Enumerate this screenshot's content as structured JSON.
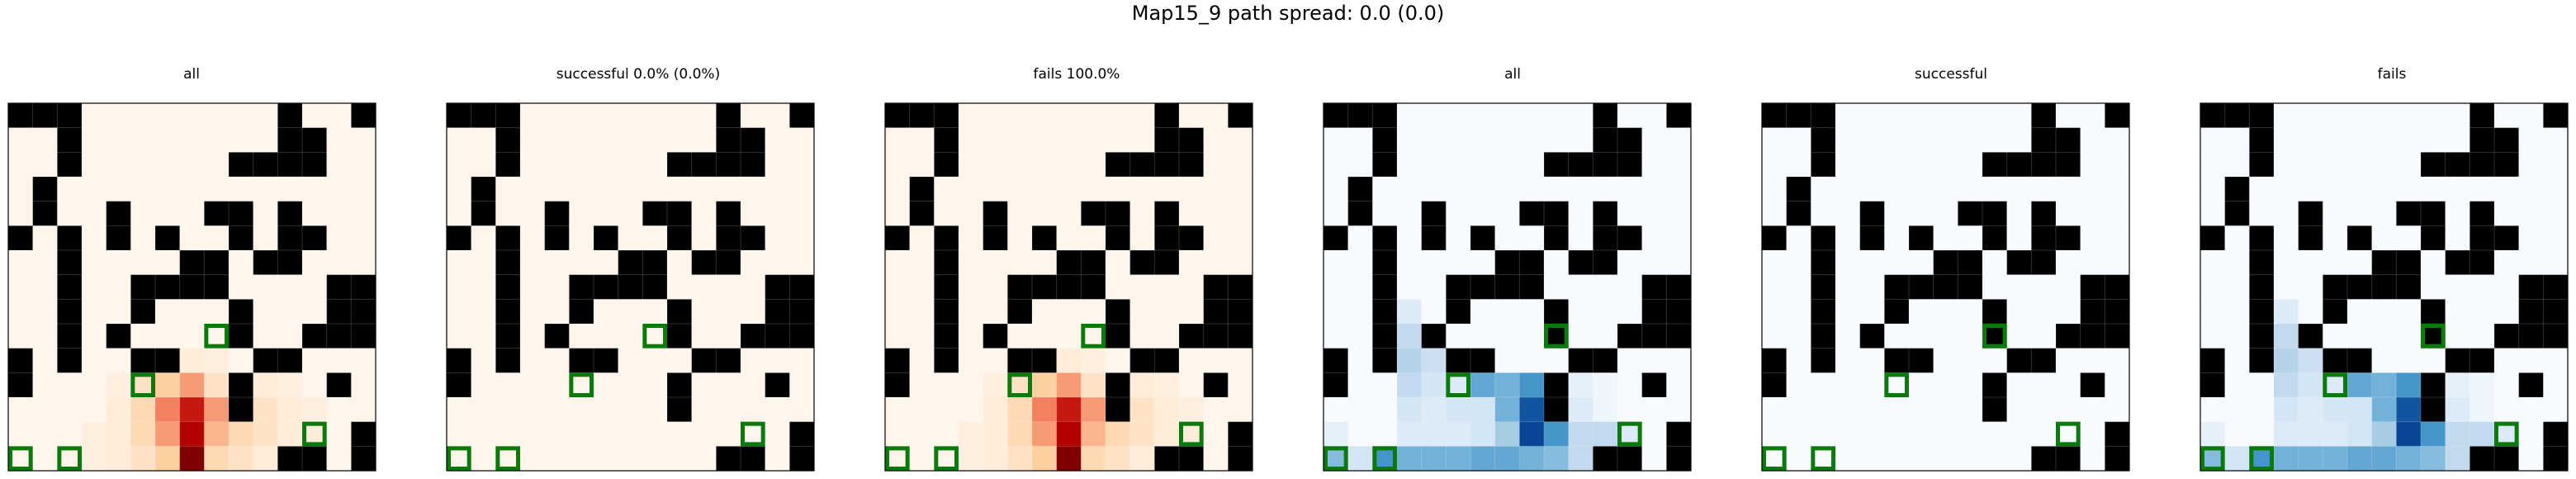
{
  "suptitle": "Map15_9 path spread: 0.0 (0.0)",
  "chart_data": [
    {
      "type": "heatmap",
      "title": "all",
      "colormap": "Oranges",
      "grid": [
        [
          1,
          1,
          1,
          0,
          0,
          0,
          0,
          0,
          0,
          0,
          0,
          1,
          0,
          0,
          1
        ],
        [
          0,
          0,
          1,
          0,
          0,
          0,
          0,
          0,
          0,
          0,
          0,
          1,
          1,
          0,
          0
        ],
        [
          0,
          0,
          1,
          0,
          0,
          0,
          0,
          0,
          0,
          1,
          1,
          1,
          1,
          0,
          0
        ],
        [
          0,
          1,
          0,
          0,
          0,
          0,
          0,
          0,
          0,
          0,
          0,
          0,
          0,
          0,
          0
        ],
        [
          0,
          1,
          0,
          0,
          1,
          0,
          0,
          0,
          1,
          1,
          0,
          1,
          0,
          0,
          0
        ],
        [
          1,
          0,
          1,
          0,
          1,
          0,
          1,
          0,
          0,
          1,
          0,
          1,
          1,
          0,
          0
        ],
        [
          0,
          0,
          1,
          0,
          0,
          0,
          0,
          1,
          1,
          0,
          1,
          1,
          0,
          0,
          0
        ],
        [
          0,
          0,
          1,
          0,
          0,
          1,
          1,
          1,
          1,
          0,
          0,
          0,
          0,
          1,
          1
        ],
        [
          0,
          0,
          1,
          0,
          0,
          1,
          0,
          0,
          0,
          1,
          0,
          0,
          0,
          1,
          1
        ],
        [
          0,
          0,
          1,
          0,
          1,
          0,
          0,
          0,
          0,
          1,
          0,
          0,
          1,
          1,
          1
        ],
        [
          1,
          0,
          1,
          0,
          0,
          1,
          1,
          0,
          0,
          0,
          1,
          1,
          0,
          0,
          0
        ],
        [
          1,
          0,
          0,
          0,
          0,
          0,
          0,
          0,
          0,
          1,
          0,
          0,
          0,
          1,
          0
        ],
        [
          0,
          0,
          0,
          0,
          0,
          0,
          0,
          0,
          0,
          1,
          0,
          0,
          0,
          0,
          0
        ],
        [
          0,
          0,
          0,
          0,
          0,
          0,
          0,
          0,
          0,
          0,
          0,
          0,
          0,
          0,
          1
        ],
        [
          0,
          0,
          0,
          0,
          0,
          0,
          0,
          0,
          0,
          0,
          0,
          1,
          1,
          0,
          1
        ]
      ],
      "values": [
        [
          0,
          0,
          0,
          0,
          0,
          0,
          0,
          0,
          0,
          0,
          0,
          0,
          0,
          0,
          0
        ],
        [
          0,
          0,
          0,
          0,
          0,
          0,
          0,
          0,
          0,
          0,
          0,
          0,
          0,
          0,
          0
        ],
        [
          0,
          0,
          0,
          0,
          0,
          0,
          0,
          0,
          0,
          0,
          0,
          0,
          0,
          0,
          0
        ],
        [
          0,
          0,
          0,
          0,
          0,
          0,
          0,
          0,
          0,
          0,
          0,
          0,
          0,
          0,
          0
        ],
        [
          0,
          0,
          0,
          0,
          0,
          0,
          0,
          0,
          0,
          0,
          0,
          0,
          0,
          0,
          0
        ],
        [
          0,
          0,
          0,
          0,
          0,
          0,
          0,
          0,
          0,
          0,
          0,
          0,
          0,
          0,
          0
        ],
        [
          0,
          0,
          0,
          0,
          0,
          0,
          0,
          0,
          0,
          0,
          0,
          0,
          0,
          0,
          0
        ],
        [
          0,
          0,
          0,
          0,
          0,
          0,
          0,
          0,
          0,
          0,
          0,
          0,
          0,
          0,
          0
        ],
        [
          0,
          0,
          0,
          0,
          0,
          0,
          0,
          0,
          0,
          0,
          0,
          0,
          0,
          0,
          0
        ],
        [
          0,
          0,
          0,
          0,
          0,
          0,
          0,
          0,
          0,
          0,
          0,
          0,
          0,
          0,
          0
        ],
        [
          0,
          0,
          0,
          0,
          0,
          0.05,
          0.08,
          0.05,
          0.03,
          0,
          0,
          0,
          0,
          0,
          0
        ],
        [
          0,
          0,
          0,
          0,
          0.03,
          0.1,
          0.2,
          0.3,
          0.1,
          0,
          0.05,
          0.03,
          0,
          0,
          0
        ],
        [
          0,
          0,
          0,
          0,
          0.05,
          0.15,
          0.35,
          0.7,
          0.3,
          0,
          0.1,
          0.05,
          0.03,
          0,
          0
        ],
        [
          0,
          0,
          0,
          0.03,
          0.05,
          0.15,
          0.3,
          0.8,
          0.25,
          0.15,
          0.1,
          0.05,
          0.05,
          0,
          0
        ],
        [
          0,
          0,
          0,
          0.03,
          0.05,
          0.1,
          0.2,
          1.0,
          0.15,
          0.1,
          0.05,
          0,
          0,
          0,
          0
        ]
      ],
      "goals": [
        [
          9,
          8
        ],
        [
          11,
          5
        ],
        [
          13,
          12
        ],
        [
          14,
          0
        ],
        [
          14,
          2
        ]
      ]
    },
    {
      "type": "heatmap",
      "title": "successful 0.0% (0.0%)",
      "colormap": "Oranges",
      "values": "zeros",
      "grid": "same_as_all",
      "goals": [
        [
          9,
          8
        ],
        [
          11,
          5
        ],
        [
          13,
          12
        ],
        [
          14,
          0
        ],
        [
          14,
          2
        ]
      ]
    },
    {
      "type": "heatmap",
      "title": "fails 100.0%",
      "colormap": "Oranges",
      "values": "same_as_all",
      "grid": "same_as_all",
      "goals": [
        [
          9,
          8
        ],
        [
          11,
          5
        ],
        [
          13,
          12
        ],
        [
          14,
          0
        ],
        [
          14,
          2
        ]
      ]
    },
    {
      "type": "heatmap",
      "title": "all",
      "colormap": "Blues",
      "grid": "same_as_all",
      "values": [
        [
          0,
          0,
          0,
          0,
          0,
          0,
          0,
          0,
          0,
          0,
          0,
          0,
          0,
          0,
          0
        ],
        [
          0,
          0,
          0,
          0,
          0,
          0,
          0,
          0,
          0,
          0,
          0,
          0,
          0,
          0,
          0
        ],
        [
          0,
          0,
          0,
          0,
          0,
          0,
          0,
          0,
          0,
          0,
          0,
          0,
          0,
          0,
          0
        ],
        [
          0,
          0,
          0,
          0,
          0,
          0,
          0,
          0,
          0,
          0,
          0,
          0,
          0,
          0,
          0
        ],
        [
          0,
          0,
          0,
          0,
          0,
          0,
          0,
          0,
          0,
          0,
          0,
          0,
          0,
          0,
          0
        ],
        [
          0,
          0,
          0,
          0,
          0,
          0,
          0,
          0,
          0,
          0,
          0,
          0,
          0,
          0,
          0
        ],
        [
          0,
          0,
          0,
          0,
          0,
          0,
          0,
          0,
          0,
          0,
          0,
          0,
          0,
          0,
          0
        ],
        [
          0,
          0,
          0,
          0,
          0,
          0,
          0,
          0,
          0,
          0,
          0,
          0,
          0,
          0,
          0
        ],
        [
          0,
          0,
          0,
          0.15,
          0,
          0,
          0,
          0,
          0,
          0,
          0,
          0,
          0,
          0,
          0
        ],
        [
          0,
          0,
          0,
          0.3,
          0.15,
          0,
          0,
          0,
          0,
          0.45,
          0,
          0,
          0,
          0,
          0
        ],
        [
          0,
          0,
          0,
          0.35,
          0.25,
          0,
          0.2,
          0,
          0,
          0,
          0,
          0,
          0,
          0,
          0
        ],
        [
          0,
          0,
          0,
          0.3,
          0.2,
          0.15,
          0.6,
          0.55,
          0.7,
          0.3,
          0.1,
          0.05,
          0,
          0,
          0
        ],
        [
          0,
          0,
          0,
          0.2,
          0.15,
          0.2,
          0.2,
          0.55,
          0.95,
          0.65,
          0.15,
          0.05,
          0,
          0,
          0
        ],
        [
          0.1,
          0,
          0,
          0.15,
          0.15,
          0.15,
          0.2,
          0.4,
          1.0,
          0.7,
          0.3,
          0.3,
          0.15,
          0,
          0
        ],
        [
          0.5,
          0.2,
          0.7,
          0.55,
          0.55,
          0.55,
          0.6,
          0.6,
          0.55,
          0.5,
          0.3,
          0,
          0,
          0,
          0
        ]
      ],
      "goals": [
        [
          9,
          9
        ],
        [
          11,
          5
        ],
        [
          13,
          12
        ],
        [
          14,
          0
        ],
        [
          14,
          2
        ]
      ]
    },
    {
      "type": "heatmap",
      "title": "successful",
      "colormap": "Blues",
      "values": "zeros",
      "grid": "same_as_all",
      "goals": [
        [
          9,
          9
        ],
        [
          11,
          5
        ],
        [
          13,
          12
        ],
        [
          14,
          0
        ],
        [
          14,
          2
        ]
      ]
    },
    {
      "type": "heatmap",
      "title": "fails",
      "colormap": "Blues",
      "values": "same_as_blue_all",
      "grid": "same_as_all",
      "goals": [
        [
          9,
          9
        ],
        [
          11,
          5
        ],
        [
          13,
          12
        ],
        [
          14,
          0
        ],
        [
          14,
          2
        ]
      ]
    }
  ]
}
